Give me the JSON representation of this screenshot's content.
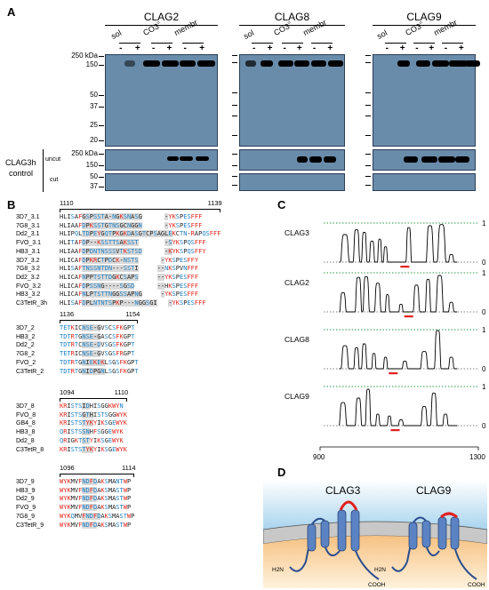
{
  "panels": {
    "a": "A",
    "b": "B",
    "c": "C",
    "d": "D"
  },
  "panelA": {
    "groups": [
      {
        "title": "CLAG2",
        "lanes": [
          "sol",
          "CO3",
          "membr"
        ]
      },
      {
        "title": "CLAG8",
        "lanes": [
          "sol",
          "CO3",
          "membr"
        ]
      },
      {
        "title": "CLAG9",
        "lanes": [
          "sol",
          "CO3",
          "membr"
        ]
      }
    ],
    "co3_superscript": "=",
    "signs": [
      "-",
      "+",
      "-",
      "+",
      "-",
      "+"
    ],
    "markers_top": [
      "250 kDa",
      "150",
      "50",
      "37",
      "25",
      "20"
    ],
    "markers_uncut": [
      "250 kDa",
      "150"
    ],
    "markers_cut": [
      "50",
      "37"
    ],
    "control_label_1": "CLAG3h",
    "control_label_2": "control",
    "row_uncut": "uncut",
    "row_cut": "cut"
  },
  "panelB": {
    "blocks": [
      {
        "start": "1110",
        "end": "1139",
        "rows": [
          {
            "name": "3D7_3.1",
            "seq": "HLISAFGSPSSTA-NGKSNASG      -YKSPESFFF"
          },
          {
            "name": "7G8_3.1",
            "seq": "HLIAAFDPKSSTGTNSGCNGGN      -YKSPESFFF"
          },
          {
            "name": "Dd2_3.1",
            "seq": "HLIPQLTDPEYGQTPKGKDASGTCPSAGLEKCTN-RAPQSFFF"
          },
          {
            "name": "FVO_3.1",
            "seq": "HLITAFDP--KSSTTSAKSST       -SYKSPQSFFF"
          },
          {
            "name": "HB3_3.1",
            "seq": "HLIAAFDPDNTNSSSVTKSTSD      -KYKSPQSFFY"
          },
          {
            "name": "3D7_3.2",
            "seq": "HLICAFDPKRCTPDCK-NSTS      -YKSPESFFY"
          },
          {
            "name": "7G8_3.2",
            "seq": "HLISAFTNSSNTDN---SSTI     --NKSPVNFFF"
          },
          {
            "name": "Dd2_3.2",
            "seq": "HLICAFNPPTSTTDGKCSAPS     --YKSPESFFF"
          },
          {
            "name": "FVO_3.2",
            "seq": "HLICAFDPSSNG----SGSD      --HKSPESFFF"
          },
          {
            "name": "HB3_3.2",
            "seq": "HLICAFNLPTSTTNGGSSAPNG     -YKSPESFFF"
          },
          {
            "name": "C3TetR_3h",
            "seq": "HLISAFDPLNTNTSPKP---NGGSGI   -YKSPESFFF"
          }
        ]
      },
      {
        "start": "1136",
        "end": "1154",
        "rows": [
          {
            "name": "3D7_2",
            "seq": "TETKICNSE-GVSCSFKGPT"
          },
          {
            "name": "HB3_2",
            "seq": "TDTRTGNSE-GASCSFKGPT"
          },
          {
            "name": "Dd2_2",
            "seq": "TDTRTCNSE-DVSGSFKGPT"
          },
          {
            "name": "7G8_2",
            "seq": "TETRICNSE-GVSGSFRGPT"
          },
          {
            "name": "FVO_2",
            "seq": "TDTRTGNIEKEKLSGSFKGPT"
          },
          {
            "name": "C3TetR_2",
            "seq": "TDTRTGNIDPGNLSGSFKGPT"
          }
        ]
      },
      {
        "start": "1094",
        "end": "1110",
        "rows": [
          {
            "name": "3D7_8",
            "seq": "KRISTSIDHISGGKWYN"
          },
          {
            "name": "FVO_8",
            "seq": "KRISTSGTHISTSGGWYK"
          },
          {
            "name": "GB4_8",
            "seq": "KRISTSTYKYIKSGEWYK"
          },
          {
            "name": "HB3_8",
            "seq": "QRISTSSNHFSGGEWYK"
          },
          {
            "name": "Dd2_8",
            "seq": "QRIGKTSTYIKSGEWYK"
          },
          {
            "name": "C3TetR_8",
            "seq": "KRISTSTYKYIKSGEWYK"
          }
        ]
      },
      {
        "start": "1096",
        "end": "1114",
        "rows": [
          {
            "name": "3D7_9",
            "seq": "WYKMVFNDFDAKSMANTWP"
          },
          {
            "name": "HB3_9",
            "seq": "WYKMVFNDFDAKSMASTWP"
          },
          {
            "name": "Dd2_9",
            "seq": "WYKMVFNDFDAKSMASTWP"
          },
          {
            "name": "FVO_9",
            "seq": "WYKMVFNDFDAKSMASTWP"
          },
          {
            "name": "7G8_9",
            "seq": "WYKQMVFNDFDAKSMASTWP"
          },
          {
            "name": "C3TetR_9",
            "seq": "WYKMVFNDFDAKSMASTWP"
          }
        ]
      }
    ]
  },
  "panelC": {
    "tracks": [
      {
        "label": "CLAG3",
        "peaks": [
          [
            955,
            0.72,
            16
          ],
          [
            985,
            0.85,
            12
          ],
          [
            1005,
            0.78,
            10
          ],
          [
            1025,
            0.55,
            10
          ],
          [
            1045,
            0.6,
            8
          ],
          [
            1060,
            0.4,
            8
          ],
          [
            1120,
            0.9,
            10
          ],
          [
            1175,
            0.95,
            14
          ],
          [
            1205,
            0.98,
            16
          ],
          [
            1230,
            0.2,
            10
          ]
        ],
        "bar": 1110
      },
      {
        "label": "CLAG2",
        "peaks": [
          [
            950,
            0.5,
            12
          ],
          [
            990,
            0.9,
            12
          ],
          [
            1010,
            0.92,
            12
          ],
          [
            1040,
            0.75,
            12
          ],
          [
            1065,
            0.45,
            8
          ],
          [
            1100,
            0.2,
            8
          ],
          [
            1140,
            0.7,
            12
          ],
          [
            1170,
            0.85,
            10
          ],
          [
            1200,
            0.95,
            14
          ],
          [
            1230,
            0.25,
            10
          ]
        ],
        "bar": 1120
      },
      {
        "label": "CLAG8",
        "peaks": [
          [
            955,
            0.6,
            14
          ],
          [
            985,
            0.55,
            10
          ],
          [
            1005,
            0.65,
            10
          ],
          [
            1030,
            0.4,
            8
          ],
          [
            1060,
            0.3,
            8
          ],
          [
            1110,
            0.2,
            10
          ],
          [
            1160,
            0.45,
            14
          ],
          [
            1195,
            1.0,
            12
          ],
          [
            1230,
            0.3,
            10
          ]
        ],
        "bar": 1080
      },
      {
        "label": "CLAG9",
        "peaks": [
          [
            950,
            0.6,
            14
          ],
          [
            990,
            0.72,
            12
          ],
          [
            1015,
            0.95,
            10
          ],
          [
            1040,
            0.3,
            8
          ],
          [
            1070,
            0.25,
            8
          ],
          [
            1100,
            0.15,
            10
          ],
          [
            1160,
            0.5,
            12
          ],
          [
            1185,
            0.85,
            12
          ],
          [
            1215,
            0.3,
            10
          ]
        ],
        "bar": 1085
      }
    ],
    "xmin": 900,
    "xmax": 1300,
    "ytick_top": "1",
    "ytick_bottom": "0",
    "xticks": [
      "900",
      "1300"
    ]
  },
  "panelD": {
    "labels": [
      "CLAG3",
      "CLAG9"
    ],
    "nterm": "H2N",
    "cterm": "COOH",
    "colors": {
      "membrane": "#c9c9c9",
      "protein": "#5a82c2",
      "loop": "#e0201f",
      "cytosol": "#f7c98c",
      "outside": "#b9dcf0"
    }
  }
}
